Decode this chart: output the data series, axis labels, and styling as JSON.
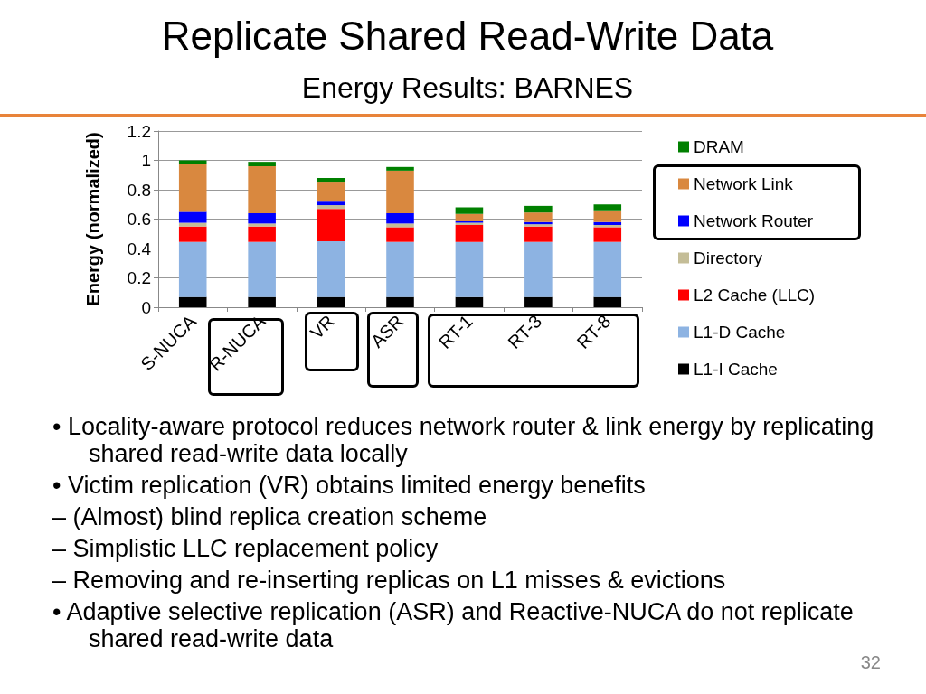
{
  "chart_data": {
    "type": "bar",
    "title": "Replicate Shared Read-Write Data",
    "subtitle": "Energy Results: BARNES",
    "ylabel": "Energy (normalized)",
    "categories": [
      "S-NUCA",
      "R-NUCA",
      "VR",
      "ASR",
      "RT-1",
      "RT-3",
      "RT-8"
    ],
    "stacked": true,
    "series": [
      {
        "name": "L1-I Cache",
        "color": "#000000",
        "values": [
          0.07,
          0.07,
          0.07,
          0.07,
          0.07,
          0.07,
          0.07
        ]
      },
      {
        "name": "L1-D Cache",
        "color": "#8db3e2",
        "values": [
          0.375,
          0.375,
          0.38,
          0.375,
          0.375,
          0.375,
          0.375
        ]
      },
      {
        "name": "L2 Cache (LLC)",
        "color": "#ff0000",
        "values": [
          0.105,
          0.105,
          0.22,
          0.1,
          0.115,
          0.105,
          0.1
        ]
      },
      {
        "name": "Directory",
        "color": "#c4bd97",
        "values": [
          0.025,
          0.02,
          0.025,
          0.025,
          0.015,
          0.015,
          0.015
        ]
      },
      {
        "name": "Network Router",
        "color": "#0000ff",
        "values": [
          0.075,
          0.07,
          0.03,
          0.07,
          0.01,
          0.015,
          0.02
        ]
      },
      {
        "name": "Network Link",
        "color": "#d9883f",
        "values": [
          0.325,
          0.32,
          0.13,
          0.29,
          0.05,
          0.065,
          0.08
        ]
      },
      {
        "name": "DRAM",
        "color": "#008000",
        "values": [
          0.025,
          0.03,
          0.025,
          0.025,
          0.045,
          0.045,
          0.04
        ]
      }
    ],
    "ylim": [
      0,
      1.2
    ],
    "yticks": [
      0,
      0.2,
      0.4,
      0.6,
      0.8,
      1,
      1.2
    ],
    "grid": "y",
    "legend": "right",
    "annotations": [
      "• Locality-aware protocol reduces network router & link energy by replicating shared read-write data locally",
      "• Victim replication (VR) obtains limited energy benefits",
      "– (Almost) blind replica creation scheme",
      "– Simplistic LLC replacement policy",
      "– Removing and re-inserting replicas on L1 misses & evictions",
      "• Adaptive selective replication (ASR) and Reactive-NUCA do not replicate shared read-write data",
      "32"
    ]
  }
}
